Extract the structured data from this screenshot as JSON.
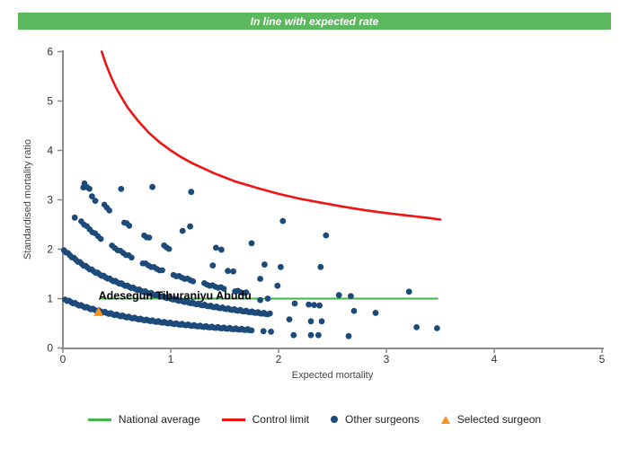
{
  "banner": {
    "title": "In line with expected rate",
    "bg": "#5cb85c",
    "fg": "#ffffff"
  },
  "chart_data": {
    "type": "scatter",
    "title": "In line with expected rate",
    "xlabel": "Expected mortality",
    "ylabel": "Standardised mortality ratio",
    "xlim": [
      0,
      5
    ],
    "ylim": [
      0,
      6
    ],
    "x_ticks": [
      0,
      1,
      2,
      3,
      4,
      5
    ],
    "y_ticks": [
      0,
      1,
      2,
      3,
      4,
      5,
      6
    ],
    "grid": false,
    "national_average": {
      "value": 1.0,
      "x_start": 0.35,
      "x_end": 3.48,
      "color": "#43b649"
    },
    "control_limit": {
      "formula": "SMR = 1 + 3/sqrt(E)",
      "color": "#ee1414",
      "points": [
        [
          0.36,
          6.0
        ],
        [
          0.38,
          5.87
        ],
        [
          0.4,
          5.74
        ],
        [
          0.45,
          5.47
        ],
        [
          0.5,
          5.24
        ],
        [
          0.55,
          5.05
        ],
        [
          0.6,
          4.87
        ],
        [
          0.7,
          4.59
        ],
        [
          0.8,
          4.35
        ],
        [
          0.9,
          4.16
        ],
        [
          1.0,
          4.0
        ],
        [
          1.1,
          3.86
        ],
        [
          1.2,
          3.74
        ],
        [
          1.4,
          3.54
        ],
        [
          1.6,
          3.37
        ],
        [
          1.8,
          3.24
        ],
        [
          2.0,
          3.12
        ],
        [
          2.2,
          3.02
        ],
        [
          2.4,
          2.94
        ],
        [
          2.6,
          2.86
        ],
        [
          2.8,
          2.79
        ],
        [
          3.0,
          2.73
        ],
        [
          3.2,
          2.68
        ],
        [
          3.4,
          2.63
        ],
        [
          3.5,
          2.6
        ]
      ]
    },
    "selected_surgeon": {
      "label": "Adesegun Tiburaniyu Abudu",
      "x": 0.33,
      "y": 0.73,
      "color": "#f6921e"
    },
    "other_surgeons": {
      "color": "#1c4a7a",
      "smr_formula": "observed / (expected + 1)",
      "bands": [
        {
          "observed": 1,
          "e_min": 0.02,
          "e_max": 1.75,
          "count": 95,
          "pattern": [
            1,
            0
          ]
        },
        {
          "observed": 2,
          "e_min": 0.01,
          "e_max": 1.92,
          "count": 105,
          "pattern": [
            1,
            0
          ]
        },
        {
          "observed": 3,
          "e_min": 0.17,
          "e_max": 1.7,
          "count": 60,
          "pattern": [
            8,
            3
          ]
        },
        {
          "observed": 4,
          "e_min": 0.2,
          "e_max": 1.1,
          "count": 40,
          "pattern": [
            3,
            5
          ]
        }
      ],
      "points": [
        [
          0.11,
          2.64
        ],
        [
          0.19,
          3.25
        ],
        [
          0.27,
          3.07
        ],
        [
          0.3,
          2.98
        ],
        [
          0.54,
          3.22
        ],
        [
          0.83,
          3.26
        ],
        [
          1.19,
          3.16
        ],
        [
          1.11,
          2.37
        ],
        [
          1.18,
          2.46
        ],
        [
          1.42,
          2.03
        ],
        [
          1.47,
          1.99
        ],
        [
          1.75,
          2.12
        ],
        [
          2.04,
          2.57
        ],
        [
          2.44,
          2.28
        ],
        [
          1.39,
          1.67
        ],
        [
          1.53,
          1.56
        ],
        [
          1.58,
          1.55
        ],
        [
          1.87,
          1.69
        ],
        [
          2.02,
          1.64
        ],
        [
          2.39,
          1.64
        ],
        [
          1.83,
          1.4
        ],
        [
          1.99,
          1.26
        ],
        [
          1.83,
          0.97
        ],
        [
          1.9,
          1.0
        ],
        [
          2.56,
          1.07
        ],
        [
          2.67,
          1.05
        ],
        [
          3.21,
          1.14
        ],
        [
          2.15,
          0.9
        ],
        [
          2.28,
          0.88
        ],
        [
          2.33,
          0.87
        ],
        [
          2.38,
          0.86
        ],
        [
          1.86,
          0.7
        ],
        [
          2.1,
          0.58
        ],
        [
          2.3,
          0.54
        ],
        [
          2.4,
          0.54
        ],
        [
          2.7,
          0.75
        ],
        [
          2.9,
          0.71
        ],
        [
          1.86,
          0.34
        ],
        [
          1.93,
          0.33
        ],
        [
          2.14,
          0.26
        ],
        [
          2.3,
          0.26
        ],
        [
          2.37,
          0.26
        ],
        [
          2.65,
          0.24
        ],
        [
          3.28,
          0.42
        ],
        [
          3.47,
          0.4
        ]
      ]
    }
  },
  "legend": {
    "items": [
      {
        "label": "National average",
        "marker": "line",
        "color": "#43b649"
      },
      {
        "label": "Control limit",
        "marker": "line",
        "color": "#ee1414"
      },
      {
        "label": "Other surgeons",
        "marker": "dot",
        "color": "#1c4a7a"
      },
      {
        "label": "Selected surgeon",
        "marker": "triangle",
        "color": "#f6921e"
      }
    ]
  }
}
